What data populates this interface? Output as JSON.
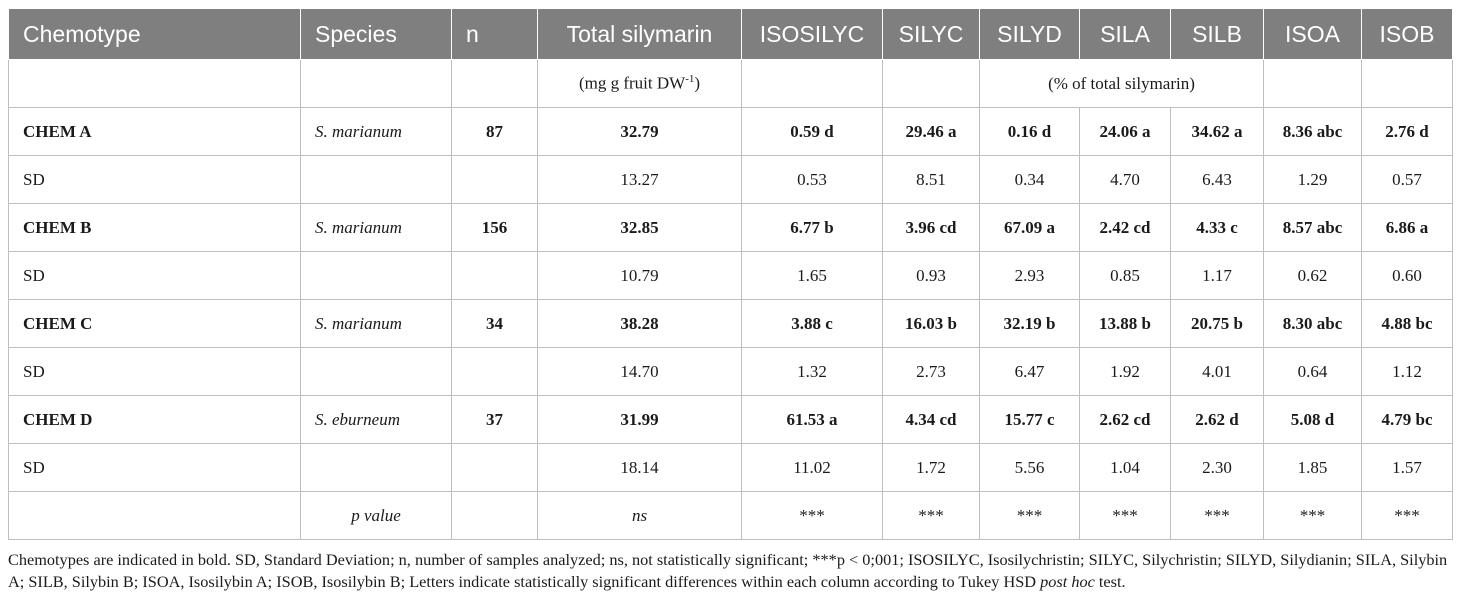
{
  "headers": [
    "Chemotype",
    "Species",
    "n",
    "Total silymarin",
    "ISOSILYC",
    "SILYC",
    "SILYD",
    "SILA",
    "SILB",
    "ISOA",
    "ISOB"
  ],
  "units": {
    "total_prefix": "(mg g fruit DW",
    "total_sup": "-1",
    "total_suffix": ")",
    "percent": "(% of total silymarin)"
  },
  "rows": [
    {
      "kind": "chem",
      "cells": [
        "CHEM A",
        "S. marianum",
        "87",
        "32.79",
        "0.59 d",
        "29.46 a",
        "0.16 d",
        "24.06 a",
        "34.62 a",
        "8.36 abc",
        "2.76 d"
      ]
    },
    {
      "kind": "sd",
      "cells": [
        "SD",
        "",
        "",
        "13.27",
        "0.53",
        "8.51",
        "0.34",
        "4.70",
        "6.43",
        "1.29",
        "0.57"
      ]
    },
    {
      "kind": "chem",
      "cells": [
        "CHEM B",
        "S. marianum",
        "156",
        "32.85",
        "6.77 b",
        "3.96 cd",
        "67.09 a",
        "2.42 cd",
        "4.33 c",
        "8.57 abc",
        "6.86 a"
      ]
    },
    {
      "kind": "sd",
      "cells": [
        "SD",
        "",
        "",
        "10.79",
        "1.65",
        "0.93",
        "2.93",
        "0.85",
        "1.17",
        "0.62",
        "0.60"
      ]
    },
    {
      "kind": "chem",
      "cells": [
        "CHEM C",
        "S. marianum",
        "34",
        "38.28",
        "3.88 c",
        "16.03 b",
        "32.19 b",
        "13.88 b",
        "20.75 b",
        "8.30 abc",
        "4.88 bc"
      ]
    },
    {
      "kind": "sd",
      "cells": [
        "SD",
        "",
        "",
        "14.70",
        "1.32",
        "2.73",
        "6.47",
        "1.92",
        "4.01",
        "0.64",
        "1.12"
      ]
    },
    {
      "kind": "chem",
      "cells": [
        "CHEM D",
        "S. eburneum",
        "37",
        "31.99",
        "61.53 a",
        "4.34 cd",
        "15.77 c",
        "2.62 cd",
        "2.62 d",
        "5.08 d",
        "4.79 bc"
      ]
    },
    {
      "kind": "sd",
      "cells": [
        "SD",
        "",
        "",
        "18.14",
        "11.02",
        "1.72",
        "5.56",
        "1.04",
        "2.30",
        "1.85",
        "1.57"
      ]
    }
  ],
  "pvalue_row": [
    "",
    "p value",
    "",
    "ns",
    "***",
    "***",
    "***",
    "***",
    "***",
    "***",
    "***"
  ],
  "footnote": {
    "text": "Chemotypes are indicated in bold. SD, Standard Deviation; n, number of samples analyzed; ns, not statistically significant; ***p < 0;001; ISOSILYC, Isosilychristin; SILYC, Silychristin; SILYD, Silydianin; SILA, Silybin A; SILB, Silybin B; ISOA, Isosilybin A; ISOB, Isosilybin B; Letters indicate statistically significant differences within each column according to Tukey HSD ",
    "italic": "post hoc",
    "end": " test."
  }
}
